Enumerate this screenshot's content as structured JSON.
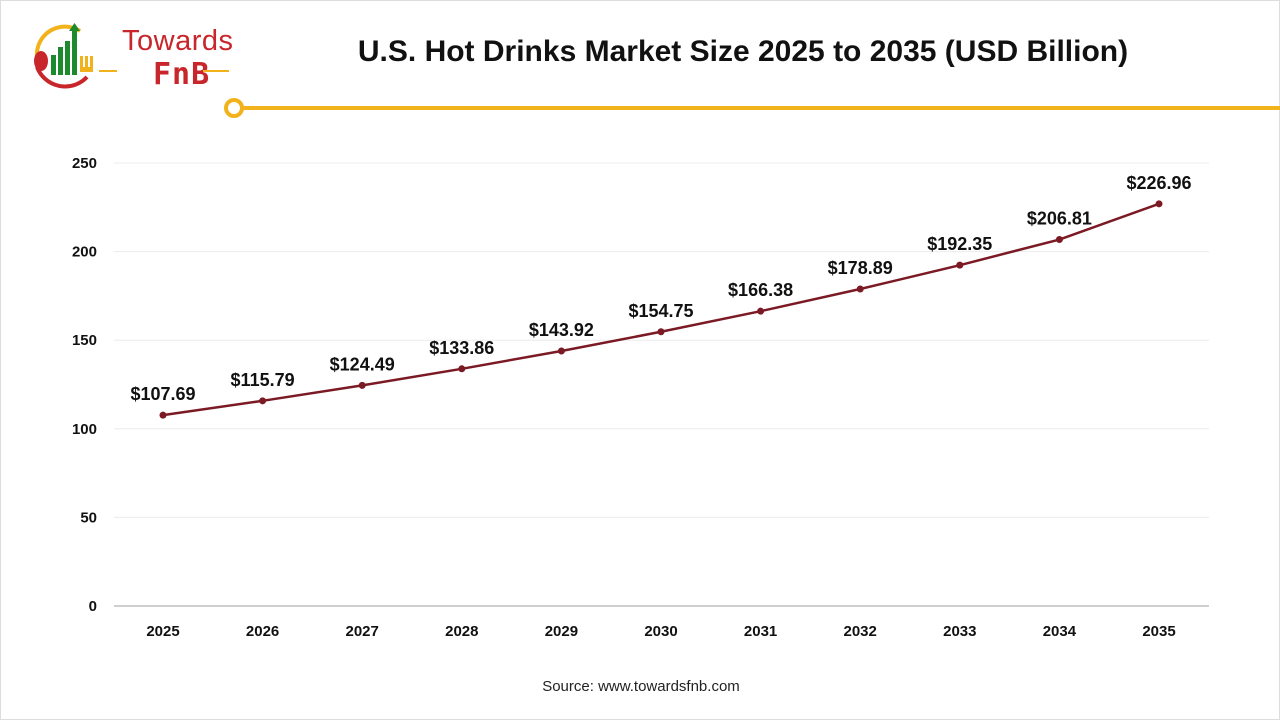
{
  "logo": {
    "line1": "Towards",
    "line2": "FnB"
  },
  "header": {
    "accent_color": "#f2b21b"
  },
  "chart_data": {
    "type": "line",
    "title": "U.S. Hot Drinks Market Size 2025 to 2035 (USD Billion)",
    "xlabel": "",
    "ylabel": "",
    "categories": [
      "2025",
      "2026",
      "2027",
      "2028",
      "2029",
      "2030",
      "2031",
      "2032",
      "2033",
      "2034",
      "2035"
    ],
    "values": [
      107.69,
      115.79,
      124.49,
      133.86,
      143.92,
      154.75,
      166.38,
      178.89,
      192.35,
      206.81,
      226.96
    ],
    "data_labels": [
      "$107.69",
      "$115.79",
      "$124.49",
      "$133.86",
      "$143.92",
      "$154.75",
      "$166.38",
      "$178.89",
      "$192.35",
      "$206.81",
      "$226.96"
    ],
    "ylim": [
      0,
      250
    ],
    "yticks": [
      0,
      50,
      100,
      150,
      200,
      250
    ],
    "grid": true,
    "line_color": "#7b1a24"
  },
  "source": "Source: www.towardsfnb.com"
}
